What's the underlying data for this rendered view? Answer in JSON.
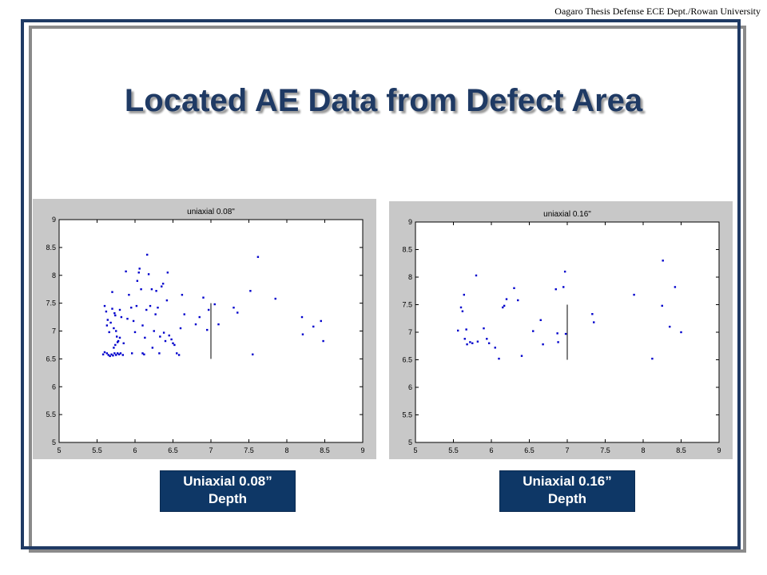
{
  "header": {
    "note": "Oagaro Thesis Defense ECE Dept./Rowan University"
  },
  "slide": {
    "title": "Located AE Data from Defect Area"
  },
  "captions": [
    {
      "line1": "Uniaxial 0.08”",
      "line2": "Depth"
    },
    {
      "line1": "Uniaxial 0.16”",
      "line2": "Depth"
    }
  ],
  "colors": {
    "title": "#1f3a64",
    "frame": "#1f3a64",
    "caption_bg": "#0e3766",
    "points": "#0000cc",
    "chart_bg": "#c8c8c8"
  },
  "chart_data": [
    {
      "type": "scatter",
      "title": "uniaxial 0.08\"",
      "xlim": [
        5,
        9
      ],
      "ylim": [
        5,
        9
      ],
      "xticks": [
        "5",
        "5.5",
        "6",
        "6.5",
        "7",
        "7.5",
        "8",
        "8.5",
        "9"
      ],
      "yticks": [
        "5",
        "5.5",
        "6",
        "6.5",
        "7",
        "7.5",
        "8",
        "8.5",
        "9"
      ],
      "grid": false,
      "reference_line": {
        "x": 7,
        "y_from": 6.5,
        "y_to": 7.5
      },
      "points": [
        [
          5.6,
          7.45
        ],
        [
          5.62,
          7.35
        ],
        [
          5.63,
          7.1
        ],
        [
          5.64,
          7.2
        ],
        [
          5.66,
          6.98
        ],
        [
          5.68,
          7.15
        ],
        [
          5.7,
          7.7
        ],
        [
          5.7,
          7.4
        ],
        [
          5.72,
          7.05
        ],
        [
          5.73,
          7.32
        ],
        [
          5.74,
          7.28
        ],
        [
          5.75,
          7.0
        ],
        [
          5.76,
          6.9
        ],
        [
          5.78,
          6.82
        ],
        [
          5.8,
          7.38
        ],
        [
          5.82,
          7.25
        ],
        [
          5.58,
          6.58
        ],
        [
          5.6,
          6.62
        ],
        [
          5.63,
          6.6
        ],
        [
          5.65,
          6.57
        ],
        [
          5.67,
          6.55
        ],
        [
          5.69,
          6.58
        ],
        [
          5.71,
          6.56
        ],
        [
          5.73,
          6.6
        ],
        [
          5.75,
          6.57
        ],
        [
          5.77,
          6.6
        ],
        [
          5.79,
          6.58
        ],
        [
          5.81,
          6.6
        ],
        [
          5.84,
          6.57
        ],
        [
          5.72,
          6.7
        ],
        [
          5.74,
          6.75
        ],
        [
          5.77,
          6.8
        ],
        [
          5.8,
          6.88
        ],
        [
          5.85,
          6.78
        ],
        [
          5.88,
          8.07
        ],
        [
          5.9,
          7.22
        ],
        [
          5.92,
          7.65
        ],
        [
          5.95,
          7.42
        ],
        [
          5.96,
          6.6
        ],
        [
          5.98,
          7.18
        ],
        [
          6.0,
          6.98
        ],
        [
          6.02,
          7.45
        ],
        [
          6.03,
          7.9
        ],
        [
          6.05,
          8.05
        ],
        [
          6.06,
          8.12
        ],
        [
          6.08,
          7.75
        ],
        [
          6.1,
          7.1
        ],
        [
          6.1,
          6.6
        ],
        [
          6.12,
          6.58
        ],
        [
          6.13,
          6.88
        ],
        [
          6.15,
          7.38
        ],
        [
          6.16,
          8.37
        ],
        [
          6.18,
          8.02
        ],
        [
          6.2,
          7.45
        ],
        [
          6.22,
          7.75
        ],
        [
          6.23,
          6.7
        ],
        [
          6.25,
          7.0
        ],
        [
          6.27,
          7.3
        ],
        [
          6.28,
          7.72
        ],
        [
          6.3,
          7.42
        ],
        [
          6.32,
          6.6
        ],
        [
          6.33,
          6.9
        ],
        [
          6.35,
          7.8
        ],
        [
          6.37,
          7.85
        ],
        [
          6.38,
          6.97
        ],
        [
          6.4,
          6.82
        ],
        [
          6.42,
          7.55
        ],
        [
          6.43,
          8.05
        ],
        [
          6.45,
          6.92
        ],
        [
          6.48,
          6.85
        ],
        [
          6.5,
          6.78
        ],
        [
          6.52,
          6.75
        ],
        [
          6.55,
          6.6
        ],
        [
          6.58,
          6.57
        ],
        [
          6.6,
          7.05
        ],
        [
          6.62,
          7.65
        ],
        [
          6.65,
          7.3
        ],
        [
          6.8,
          7.12
        ],
        [
          6.85,
          7.25
        ],
        [
          6.9,
          7.6
        ],
        [
          6.95,
          7.02
        ],
        [
          6.97,
          7.38
        ],
        [
          7.05,
          7.48
        ],
        [
          7.1,
          7.12
        ],
        [
          7.3,
          7.42
        ],
        [
          7.35,
          7.33
        ],
        [
          7.52,
          7.72
        ],
        [
          7.55,
          6.58
        ],
        [
          7.62,
          8.33
        ],
        [
          7.85,
          7.58
        ],
        [
          8.2,
          7.25
        ],
        [
          8.21,
          6.94
        ],
        [
          8.35,
          7.08
        ],
        [
          8.45,
          7.18
        ],
        [
          8.48,
          6.82
        ]
      ]
    },
    {
      "type": "scatter",
      "title": "uniaxial 0.16\"",
      "xlim": [
        5,
        9
      ],
      "ylim": [
        5,
        9
      ],
      "xticks": [
        "5",
        "5.5",
        "6",
        "6.5",
        "7",
        "7.5",
        "8",
        "8.5",
        "9"
      ],
      "yticks": [
        "5",
        "5.5",
        "6",
        "6.5",
        "7",
        "7.5",
        "8",
        "8.5",
        "9"
      ],
      "grid": false,
      "reference_line": {
        "x": 7,
        "y_from": 6.5,
        "y_to": 7.5
      },
      "points": [
        [
          5.56,
          7.03
        ],
        [
          5.6,
          7.45
        ],
        [
          5.62,
          7.38
        ],
        [
          5.64,
          7.68
        ],
        [
          5.65,
          6.88
        ],
        [
          5.67,
          7.05
        ],
        [
          5.68,
          6.78
        ],
        [
          5.72,
          6.82
        ],
        [
          5.75,
          6.8
        ],
        [
          5.8,
          8.03
        ],
        [
          5.82,
          6.83
        ],
        [
          5.9,
          7.07
        ],
        [
          5.94,
          6.88
        ],
        [
          5.97,
          6.8
        ],
        [
          6.05,
          6.72
        ],
        [
          6.1,
          6.52
        ],
        [
          6.15,
          7.45
        ],
        [
          6.17,
          7.48
        ],
        [
          6.2,
          7.6
        ],
        [
          6.3,
          7.8
        ],
        [
          6.35,
          7.58
        ],
        [
          6.4,
          6.57
        ],
        [
          6.55,
          7.02
        ],
        [
          6.65,
          7.22
        ],
        [
          6.68,
          6.78
        ],
        [
          6.85,
          7.78
        ],
        [
          6.87,
          6.98
        ],
        [
          6.88,
          6.82
        ],
        [
          6.95,
          7.82
        ],
        [
          6.97,
          8.1
        ],
        [
          6.98,
          6.97
        ],
        [
          7.33,
          7.33
        ],
        [
          7.35,
          7.18
        ],
        [
          7.88,
          7.68
        ],
        [
          8.12,
          6.52
        ],
        [
          8.25,
          7.48
        ],
        [
          8.26,
          8.3
        ],
        [
          8.35,
          7.1
        ],
        [
          8.42,
          7.82
        ],
        [
          8.5,
          7.0
        ]
      ]
    }
  ]
}
